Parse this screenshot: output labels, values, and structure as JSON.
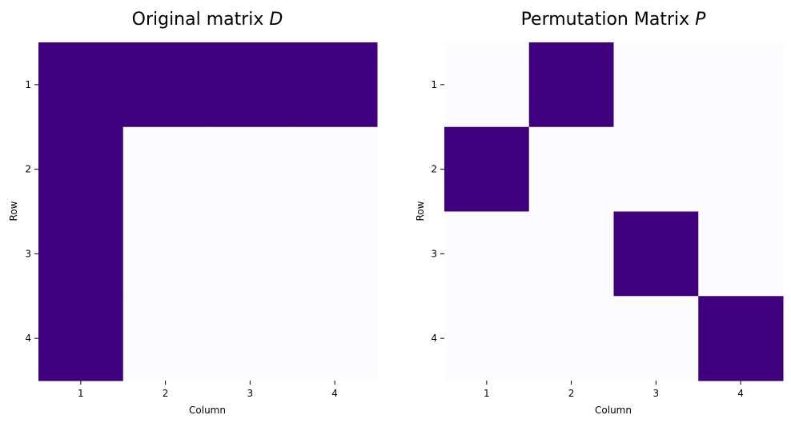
{
  "chart_data": [
    {
      "type": "heatmap",
      "title": "Original matrix",
      "title_symbol": "D",
      "xlabel": "Column",
      "ylabel": "Row",
      "x_ticks": [
        "1",
        "2",
        "3",
        "4"
      ],
      "y_ticks": [
        "1",
        "2",
        "3",
        "4"
      ],
      "matrix": [
        [
          1,
          1,
          1,
          1
        ],
        [
          1,
          0,
          0,
          0
        ],
        [
          1,
          0,
          0,
          0
        ],
        [
          1,
          0,
          0,
          0
        ]
      ],
      "colormap": "Purples",
      "colors": {
        "low": "#fcfbfd",
        "high": "#3f007d"
      },
      "grid": false,
      "colorbar": false
    },
    {
      "type": "heatmap",
      "title": "Permutation Matrix",
      "title_symbol": "P",
      "xlabel": "Column",
      "ylabel": "Row",
      "x_ticks": [
        "1",
        "2",
        "3",
        "4"
      ],
      "y_ticks": [
        "1",
        "2",
        "3",
        "4"
      ],
      "matrix": [
        [
          0,
          1,
          0,
          0
        ],
        [
          1,
          0,
          0,
          0
        ],
        [
          0,
          0,
          1,
          0
        ],
        [
          0,
          0,
          0,
          1
        ]
      ],
      "colormap": "Purples",
      "colors": {
        "low": "#fcfbfd",
        "high": "#3f007d"
      },
      "grid": false,
      "colorbar": false
    }
  ]
}
